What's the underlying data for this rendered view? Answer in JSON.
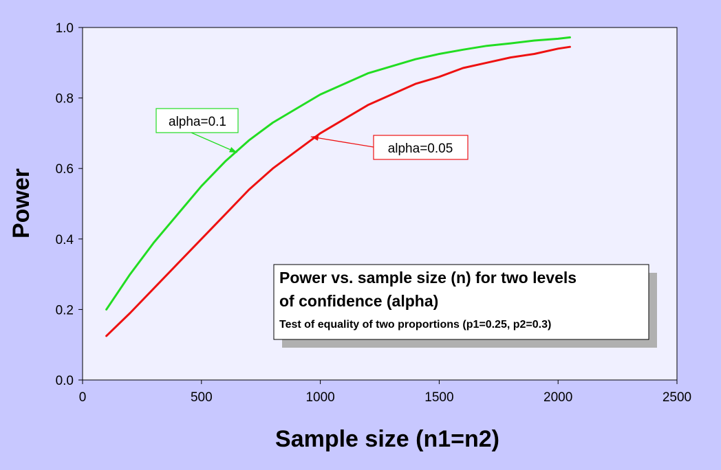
{
  "chart_data": {
    "type": "line",
    "xlabel": "Sample size (n1=n2)",
    "ylabel": "Power",
    "xlim": [
      0,
      2500
    ],
    "ylim": [
      0,
      1.0
    ],
    "x_ticks": [
      0,
      500,
      1000,
      1500,
      2000,
      2500
    ],
    "x_tick_labels": [
      "0",
      "500",
      "1000",
      "1500",
      "2000",
      "2500"
    ],
    "y_ticks": [
      0,
      0.2,
      0.4,
      0.6,
      0.8,
      1.0
    ],
    "y_tick_labels": [
      "0.0",
      "0.2",
      "0.4",
      "0.6",
      "0.8",
      "1.0"
    ],
    "grid": false,
    "x": [
      100,
      200,
      300,
      400,
      500,
      600,
      700,
      800,
      900,
      1000,
      1100,
      1200,
      1300,
      1400,
      1500,
      1600,
      1700,
      1800,
      1900,
      2000,
      2050
    ],
    "series": [
      {
        "name": "alpha=0.1",
        "color": "#22dd22",
        "values": [
          0.2,
          0.3,
          0.39,
          0.47,
          0.55,
          0.62,
          0.68,
          0.73,
          0.77,
          0.81,
          0.84,
          0.87,
          0.89,
          0.91,
          0.925,
          0.937,
          0.948,
          0.955,
          0.963,
          0.968,
          0.972
        ]
      },
      {
        "name": "alpha=0.05",
        "color": "#ee1111",
        "values": [
          0.125,
          0.19,
          0.26,
          0.33,
          0.4,
          0.47,
          0.54,
          0.6,
          0.65,
          0.7,
          0.74,
          0.78,
          0.81,
          0.84,
          0.86,
          0.885,
          0.9,
          0.915,
          0.925,
          0.94,
          0.945
        ]
      }
    ],
    "annotations": [
      {
        "text": "alpha=0.1",
        "color": "#22dd22",
        "points_to": [
          650,
          0.645
        ]
      },
      {
        "text": "alpha=0.05",
        "color": "#ee1111",
        "points_to": [
          960,
          0.69
        ]
      }
    ],
    "note": {
      "title": "Power vs. sample size (n) for two levels of confidence (alpha)",
      "subtitle": "Test of equality of two proportions (p1=0.25, p2=0.3)"
    }
  }
}
